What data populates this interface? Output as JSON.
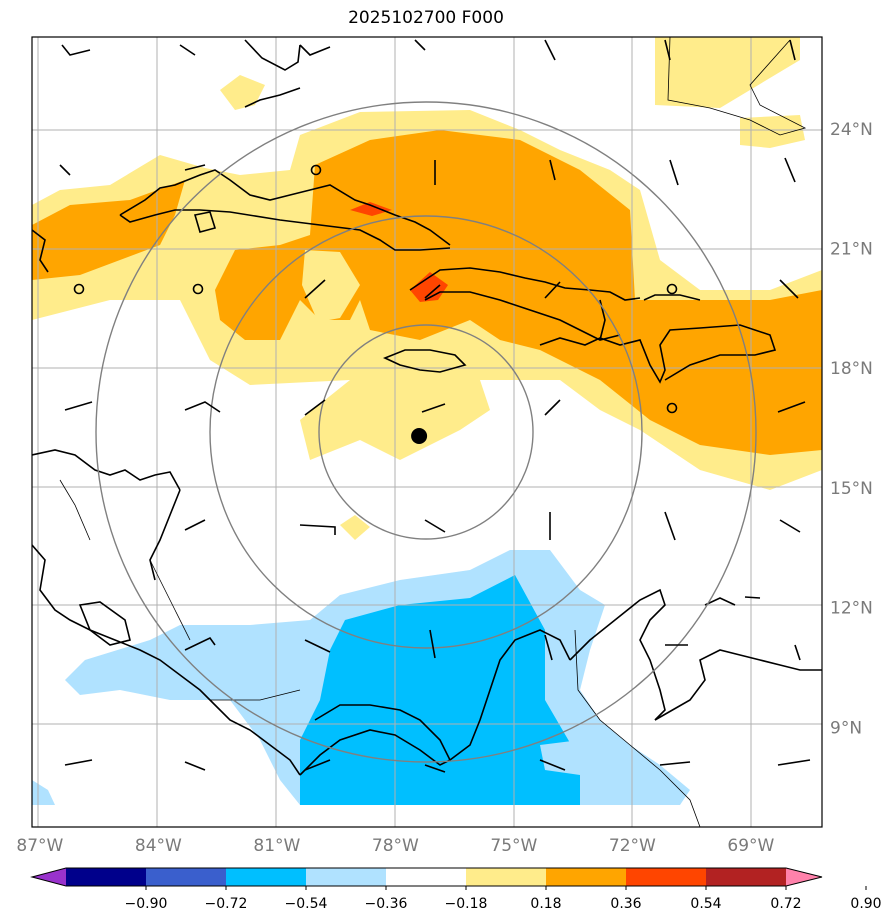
{
  "title": "2025102700 F000",
  "map": {
    "lon_range": [
      -87.2,
      -67.2
    ],
    "lat_range": [
      6.5,
      26.3
    ],
    "lon_ticks": [
      {
        "value": -87,
        "label": "87°W"
      },
      {
        "value": -84,
        "label": "84°W"
      },
      {
        "value": -81,
        "label": "81°W"
      },
      {
        "value": -78,
        "label": "78°W"
      },
      {
        "value": -75,
        "label": "75°W"
      },
      {
        "value": -72,
        "label": "72°W"
      },
      {
        "value": -69,
        "label": "69°W"
      }
    ],
    "lat_ticks": [
      {
        "value": 24,
        "label": "24°N"
      },
      {
        "value": 21,
        "label": "21°N"
      },
      {
        "value": 18,
        "label": "18°N"
      },
      {
        "value": 15,
        "label": "15°N"
      },
      {
        "value": 12,
        "label": "12°N"
      },
      {
        "value": 9,
        "label": "9°N"
      }
    ],
    "storm_center": {
      "lon": -77.4,
      "lat": 16.3
    },
    "range_rings_deg": [
      3,
      5.5,
      8
    ]
  },
  "colorbar": {
    "ticks": [
      "−0.90",
      "−0.72",
      "−0.54",
      "−0.36",
      "−0.18",
      "0.18",
      "0.36",
      "0.54",
      "0.72",
      "0.90"
    ],
    "colors": [
      "#9932cc",
      "#00008b",
      "#3a5fcd",
      "#00bfff",
      "#b0e2ff",
      "#ffffff",
      "#ffec8b",
      "#ffa500",
      "#ff4500",
      "#b22222",
      "#ff82ab"
    ]
  }
}
